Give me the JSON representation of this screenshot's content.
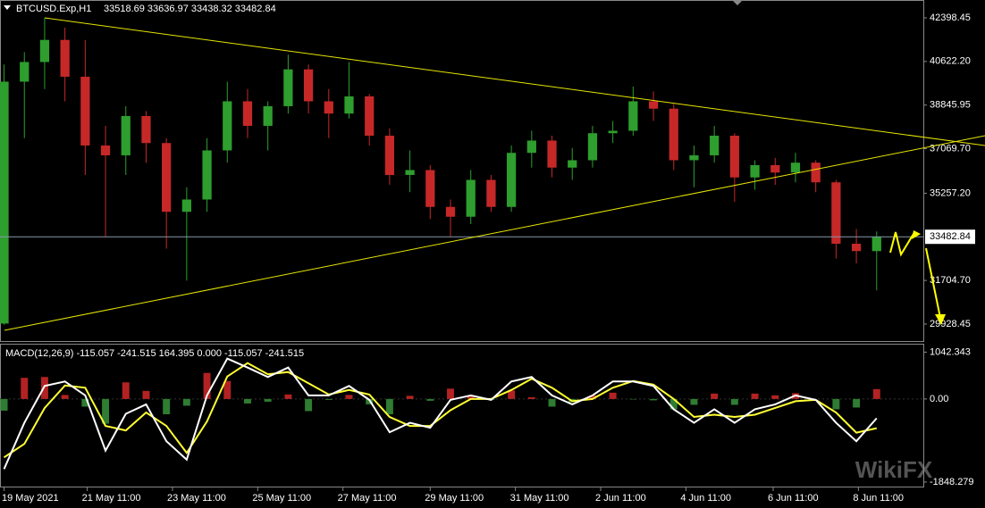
{
  "header": {
    "symbol": "BTCUSD.Exp,H1",
    "ohlc": "33518.69 33636.97 33438.32 33482.84"
  },
  "watermark": "WikiFX",
  "chart_data": [
    {
      "type": "candlestick",
      "open": [
        29950,
        39800,
        40600,
        41500,
        40000,
        37200,
        36800,
        38400,
        37300,
        34500,
        35000,
        37000,
        39000,
        38000,
        38800,
        40300,
        39000,
        38500,
        39200,
        37600,
        36000,
        36200,
        34700,
        34300,
        35800,
        34700,
        36900,
        37400,
        36300,
        36600,
        37700,
        37800,
        39000,
        38700,
        36600,
        36800,
        37600,
        35900,
        36400,
        36100,
        36500,
        35700,
        33200,
        32900
      ],
      "high": [
        40500,
        41000,
        42400,
        42000,
        41500,
        38000,
        38800,
        38600,
        37500,
        35500,
        37500,
        39800,
        39500,
        39000,
        40900,
        40500,
        39500,
        40600,
        39300,
        37900,
        37000,
        36400,
        35000,
        36200,
        36000,
        37200,
        37800,
        37600,
        37100,
        38000,
        38200,
        39600,
        39400,
        38900,
        37200,
        38000,
        37700,
        36600,
        36700,
        36900,
        36600,
        35800,
        33800,
        33700
      ],
      "low": [
        29900,
        37500,
        39500,
        39000,
        36000,
        33500,
        36000,
        36500,
        33000,
        31700,
        34500,
        36500,
        37500,
        37000,
        38500,
        38500,
        37500,
        38300,
        37200,
        35600,
        35300,
        34200,
        33500,
        34000,
        34500,
        34500,
        36300,
        35900,
        35800,
        36300,
        37300,
        37600,
        38200,
        36200,
        35500,
        36500,
        34900,
        35400,
        35600,
        35700,
        35300,
        32600,
        32400,
        31300
      ],
      "close": [
        39800,
        40600,
        41500,
        40000,
        37200,
        36800,
        38400,
        37300,
        34500,
        35000,
        37000,
        39000,
        38000,
        38800,
        40300,
        39000,
        38500,
        39200,
        37600,
        36000,
        36200,
        34700,
        34300,
        35800,
        34700,
        36900,
        37400,
        36300,
        36600,
        37700,
        37800,
        39000,
        38700,
        36600,
        36800,
        37600,
        35900,
        36400,
        36100,
        36500,
        35700,
        33200,
        32900,
        33482.84
      ],
      "up_color": "#2e9e2e",
      "down_color": "#c62828",
      "current_price": 33482.84,
      "xlim": [
        -0.2,
        45.3
      ],
      "ylim": [
        29237,
        43125
      ],
      "yticks": [
        42398.45,
        {
          "value": 40622.2,
          "label": "40622.20"
        },
        38845.95,
        {
          "value": 37069.7,
          "label": "37069.70"
        },
        {
          "value": 35257.2,
          "label": "35257.20"
        },
        {
          "value": 31704.7,
          "label": "31704.70"
        },
        29928.45
      ],
      "xticks": [
        {
          "value": 0,
          "label": "19 May 2021"
        },
        {
          "value": 4.1,
          "label": "21 May 11:00"
        },
        {
          "value": 8.3,
          "label": "23 May 11:00"
        },
        {
          "value": 12.5,
          "label": "25 May 11:00"
        },
        {
          "value": 16.7,
          "label": "27 May 11:00"
        },
        {
          "value": 21,
          "label": "29 May 11:00"
        },
        {
          "value": 25.2,
          "label": "31 May 11:00"
        },
        {
          "value": 29.4,
          "label": "2 Jun 11:00"
        },
        {
          "value": 33.6,
          "label": "4 Jun 11:00"
        },
        {
          "value": 37.9,
          "label": "6 Jun 11:00"
        },
        {
          "value": 42.1,
          "label": "8 Jun 11:00"
        }
      ]
    },
    {
      "type": "macd",
      "title": "MACD(12,26,9) -115.057 -241.515 164.395 0.000 -115.057 -241.515",
      "histogram": [
        -260,
        470,
        490,
        90,
        -170,
        -550,
        370,
        180,
        -340,
        -150,
        580,
        400,
        -100,
        -60,
        100,
        -270,
        -20,
        90,
        -120,
        -340,
        70,
        -40,
        230,
        80,
        -20,
        190,
        40,
        -170,
        -70,
        80,
        140,
        -10,
        -30,
        -230,
        -130,
        120,
        -130,
        120,
        80,
        130,
        0,
        -230,
        -190,
        220
      ],
      "macd": [
        -1560,
        -530,
        290,
        390,
        80,
        -1150,
        -330,
        -120,
        -940,
        -1350,
        80,
        900,
        700,
        490,
        700,
        80,
        80,
        290,
        -20,
        -740,
        -530,
        -640,
        -20,
        80,
        -20,
        390,
        490,
        80,
        -120,
        80,
        390,
        390,
        290,
        -230,
        -530,
        -230,
        -530,
        -230,
        -120,
        80,
        -20,
        -530,
        -940,
        -430
      ],
      "signal": [
        -1300,
        -1000,
        -200,
        300,
        250,
        -600,
        -700,
        -300,
        -600,
        -1200,
        -500,
        500,
        800,
        550,
        600,
        350,
        100,
        200,
        100,
        -400,
        -600,
        -600,
        -250,
        0,
        0,
        200,
        450,
        250,
        -50,
        0,
        250,
        400,
        320,
        0,
        -400,
        -350,
        -400,
        -350,
        -200,
        -50,
        -20,
        -300,
        -750,
        -650
      ],
      "macd_color": "#ffffff",
      "signal_color": "#ffff33",
      "hist_up_color": "#b22222",
      "hist_down_color": "#2e7d32",
      "xlim": [
        -0.2,
        45.3
      ],
      "ylim": [
        -1950,
        1230
      ],
      "yticks": [
        1042.343,
        {
          "value": 0,
          "label": "0.00"
        },
        -1848.279
      ]
    }
  ]
}
